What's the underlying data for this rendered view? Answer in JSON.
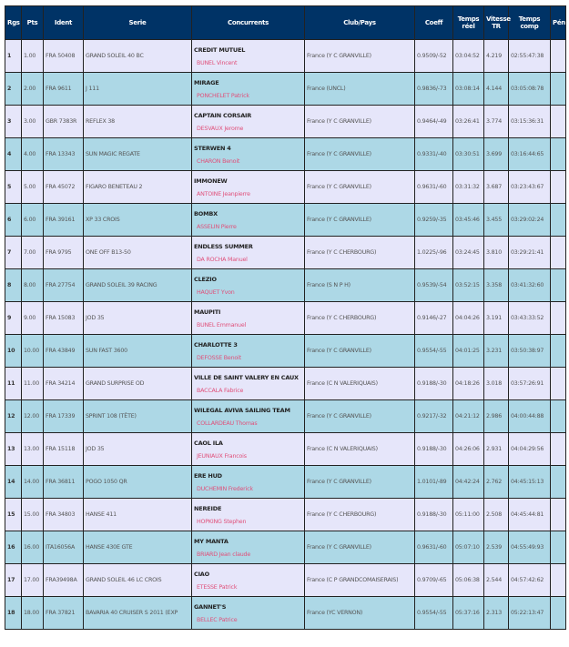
{
  "colors": {
    "header": "#003366",
    "row_odd": "#e6e6fa",
    "row_even": "#add8e6",
    "skipper": "#e0507a"
  },
  "headers": {
    "rgs": "Rgs",
    "pts": "Pts",
    "ident": "Ident",
    "serie": "Serie",
    "concurrents": "Concurrents",
    "club": "Club/Pays",
    "coeff": "Coeff",
    "temps_reel": "Temps réel",
    "vitesse": "Vitesse TR",
    "temps_comp": "Temps comp",
    "pen": "Pén"
  },
  "rows": [
    {
      "rg": "1",
      "pts": "1.00",
      "ident": "FRA 50408",
      "serie": "GRAND SOLEIL 40 BC",
      "boat": "CREDIT MUTUEL",
      "skipper": "BUNEL Vincent",
      "club": "France (Y C GRANVILLE)",
      "coeff": "0.9509/-52",
      "reel": "03:04:52",
      "vitesse": "4.219",
      "comp": "02:55:47:38",
      "pen": ""
    },
    {
      "rg": "2",
      "pts": "2.00",
      "ident": "FRA 9611",
      "serie": "J 111",
      "boat": "MIRAGE",
      "skipper": "PONCHELET Patrick",
      "club": "France (UNCL)",
      "coeff": "0.9836/-73",
      "reel": "03:08:14",
      "vitesse": "4.144",
      "comp": "03:05:08:78",
      "pen": ""
    },
    {
      "rg": "3",
      "pts": "3.00",
      "ident": "GBR 7383R",
      "serie": "REFLEX 38",
      "boat": "CAPTAIN CORSAIR",
      "skipper": "DESVAUX Jerome",
      "club": "France (Y C GRANVILLE)",
      "coeff": "0.9464/-49",
      "reel": "03:26:41",
      "vitesse": "3.774",
      "comp": "03:15:36:31",
      "pen": ""
    },
    {
      "rg": "4",
      "pts": "4.00",
      "ident": "FRA 13343",
      "serie": "SUN MAGIC REGATE",
      "boat": "STERWEN 4",
      "skipper": "CHARON Benoit",
      "club": "France (Y C GRANVILLE)",
      "coeff": "0.9331/-40",
      "reel": "03:30:51",
      "vitesse": "3.699",
      "comp": "03:16:44:65",
      "pen": ""
    },
    {
      "rg": "5",
      "pts": "5.00",
      "ident": "FRA 45072",
      "serie": "FIGARO BENETEAU 2",
      "boat": "IMMONEW",
      "skipper": "ANTOINE Jeanpierre",
      "club": "France (Y C GRANVILLE)",
      "coeff": "0.9631/-60",
      "reel": "03:31:32",
      "vitesse": "3.687",
      "comp": "03:23:43:67",
      "pen": ""
    },
    {
      "rg": "6",
      "pts": "6.00",
      "ident": "FRA 39161",
      "serie": "XP 33 CROIS",
      "boat": "BOMBX",
      "skipper": "ASSELIN Pierre",
      "club": "France (Y C GRANVILLE)",
      "coeff": "0.9259/-35",
      "reel": "03:45:46",
      "vitesse": "3.455",
      "comp": "03:29:02:24",
      "pen": ""
    },
    {
      "rg": "7",
      "pts": "7.00",
      "ident": "FRA 9795",
      "serie": "ONE OFF B13-50",
      "boat": "ENDLESS SUMMER",
      "skipper": "DA ROCHA Manuel",
      "club": "France (Y C CHERBOURG)",
      "coeff": "1.0225/-96",
      "reel": "03:24:45",
      "vitesse": "3.810",
      "comp": "03:29:21:41",
      "pen": ""
    },
    {
      "rg": "8",
      "pts": "8.00",
      "ident": "FRA 27754",
      "serie": "GRAND SOLEIL 39 RACING",
      "boat": "CLEZIO",
      "skipper": "HAQUET Yvon",
      "club": "France (S N P H)",
      "coeff": "0.9539/-54",
      "reel": "03:52:15",
      "vitesse": "3.358",
      "comp": "03:41:32:60",
      "pen": ""
    },
    {
      "rg": "9",
      "pts": "9.00",
      "ident": "FRA 15083",
      "serie": "JOD 35",
      "boat": "MAUPITI",
      "skipper": "BUNEL Emmanuel",
      "club": "France (Y C CHERBOURG)",
      "coeff": "0.9146/-27",
      "reel": "04:04:26",
      "vitesse": "3.191",
      "comp": "03:43:33:52",
      "pen": ""
    },
    {
      "rg": "10",
      "pts": "10.00",
      "ident": "FRA 43849",
      "serie": "SUN FAST 3600",
      "boat": "CHARLOTTE 3",
      "skipper": "DEFOSSE Benoit",
      "club": "France (Y C GRANVILLE)",
      "coeff": "0.9554/-55",
      "reel": "04:01:25",
      "vitesse": "3.231",
      "comp": "03:50:38:97",
      "pen": ""
    },
    {
      "rg": "11",
      "pts": "11.00",
      "ident": "FRA 34214",
      "serie": "GRAND SURPRISE OD",
      "boat": "VILLE DE SAINT VALERY EN CAUX",
      "skipper": "BACCALA Fabrice",
      "club": "France (C N VALERIQUAIS)",
      "coeff": "0.9188/-30",
      "reel": "04:18:26",
      "vitesse": "3.018",
      "comp": "03:57:26:91",
      "pen": ""
    },
    {
      "rg": "12",
      "pts": "12.00",
      "ident": "FRA 17339",
      "serie": "SPRINT 108 (TÊTE)",
      "boat": "WILEGAL AVIVA SAILING TEAM",
      "skipper": "COLLARDEAU Thomas",
      "club": "France (Y C GRANVILLE)",
      "coeff": "0.9217/-32",
      "reel": "04:21:12",
      "vitesse": "2.986",
      "comp": "04:00:44:88",
      "pen": ""
    },
    {
      "rg": "13",
      "pts": "13.00",
      "ident": "FRA 15118",
      "serie": "JOD 35",
      "boat": "CAOL ILA",
      "skipper": "JEUNIAUX Francois",
      "club": "France (C N VALERIQUAIS)",
      "coeff": "0.9188/-30",
      "reel": "04:26:06",
      "vitesse": "2.931",
      "comp": "04:04:29:56",
      "pen": ""
    },
    {
      "rg": "14",
      "pts": "14.00",
      "ident": "FRA 36811",
      "serie": "POGO 1050 QR",
      "boat": "ERE HUD",
      "skipper": "DUCHEMIN Frederick",
      "club": "France (Y C GRANVILLE)",
      "coeff": "1.0101/-89",
      "reel": "04:42:24",
      "vitesse": "2.762",
      "comp": "04:45:15:13",
      "pen": ""
    },
    {
      "rg": "15",
      "pts": "15.00",
      "ident": "FRA 34803",
      "serie": "HANSE 411",
      "boat": "NEREIDE",
      "skipper": "HOPKING Stephen",
      "club": "France (Y C CHERBOURG)",
      "coeff": "0.9188/-30",
      "reel": "05:11:00",
      "vitesse": "2.508",
      "comp": "04:45:44:81",
      "pen": ""
    },
    {
      "rg": "16",
      "pts": "16.00",
      "ident": "ITA16056A",
      "serie": "HANSE 430E GTE",
      "boat": "MY MANTA",
      "skipper": "BRIARD Jean claude",
      "club": "France (Y C GRANVILLE)",
      "coeff": "0.9631/-60",
      "reel": "05:07:10",
      "vitesse": "2.539",
      "comp": "04:55:49:93",
      "pen": ""
    },
    {
      "rg": "17",
      "pts": "17.00",
      "ident": "FRA39498A",
      "serie": "GRAND SOLEIL 46 LC CROIS",
      "boat": "CIAO",
      "skipper": "ETESSE Patrick",
      "club": "France (C P GRANDCOMAISERAIS)",
      "coeff": "0.9709/-65",
      "reel": "05:06:38",
      "vitesse": "2.544",
      "comp": "04:57:42:62",
      "pen": ""
    },
    {
      "rg": "18",
      "pts": "18.00",
      "ident": "FRA 37821",
      "serie": "BAVARIA 40 CRUISER S 2011 (EXP",
      "boat": "GANNET'S",
      "skipper": "BELLEC Patrice",
      "club": "France (YC VERNON)",
      "coeff": "0.9554/-55",
      "reel": "05:37:16",
      "vitesse": "2.313",
      "comp": "05:22:13:47",
      "pen": ""
    }
  ]
}
